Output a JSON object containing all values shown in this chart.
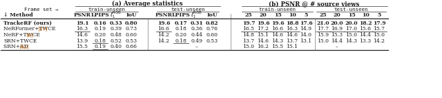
{
  "title_a": "(a) Average statistics",
  "title_b": "(b) PSNR @ # source views",
  "methods": [
    "TrackeRF (ours)",
    "NeRFormer+TWCE [37]",
    "NeRF+TWCE [9]",
    "SRN+TWCE",
    "SRN+AD [42]"
  ],
  "data": {
    "TrackeRF (ours)": [
      "19.1",
      "0.16",
      "0.33",
      "0.80",
      "19.6",
      "0.17",
      "0.31",
      "0.82",
      "19.7",
      "19.6",
      "19.6",
      "18.8",
      "17.6",
      "21.0",
      "20.0",
      "20.0",
      "18.2",
      "17.9"
    ],
    "NeRFormer+TWCE [37]": [
      "16.3",
      "0.19",
      "0.39",
      "0.73",
      "16.6",
      "0.18",
      "0.36",
      "0.76",
      "16.5",
      "17.2",
      "16.6",
      "16.3",
      "14.9",
      "17.7",
      "16.9",
      "17.0",
      "15.6",
      "15.7"
    ],
    "NeRF+TWCE [9]": [
      "14.6",
      "0.20",
      "0.48",
      "0.60",
      "14.2",
      "0.20",
      "0.44",
      "0.60",
      "14.8",
      "15.1",
      "14.6",
      "14.6",
      "14.0",
      "15.9",
      "15.3",
      "15.0",
      "14.4",
      "15.0"
    ],
    "SRN+TWCE": [
      "13.9",
      "0.18",
      "0.52",
      "0.53",
      "14.2",
      "0.18",
      "0.49",
      "0.53",
      "13.7",
      "14.6",
      "14.3",
      "13.7",
      "13.1",
      "15.0",
      "14.4",
      "14.3",
      "13.3",
      "14.2"
    ],
    "SRN+AD [42]": [
      "15.5",
      "0.19",
      "0.40",
      "0.66",
      "",
      "",
      "-",
      "",
      "15.0",
      "16.2",
      "15.5",
      "15.1",
      "",
      "",
      "-",
      "",
      "",
      ""
    ]
  },
  "bold_rows": [
    "TrackeRF (ours)"
  ],
  "underline": {
    "NeRFormer+TWCE [37]": [
      0,
      4,
      8,
      9,
      10,
      11,
      13,
      14,
      15,
      16,
      17
    ],
    "SRN+TWCE": [
      1,
      5
    ],
    "SRN+AD [42]": [
      1
    ]
  },
  "orange_refs": {
    "NeRFormer+TWCE [37]": {
      "base": "NeRFormer+TWCE ",
      "ref": "[37]"
    },
    "NeRF+TWCE [9]": {
      "base": "NeRF+TWCE ",
      "ref": "[9]"
    },
    "SRN+AD [42]": {
      "base": "SRN+AD ",
      "ref": "[42]"
    }
  },
  "background_color": "#ffffff",
  "text_color": "#1a1a1a"
}
